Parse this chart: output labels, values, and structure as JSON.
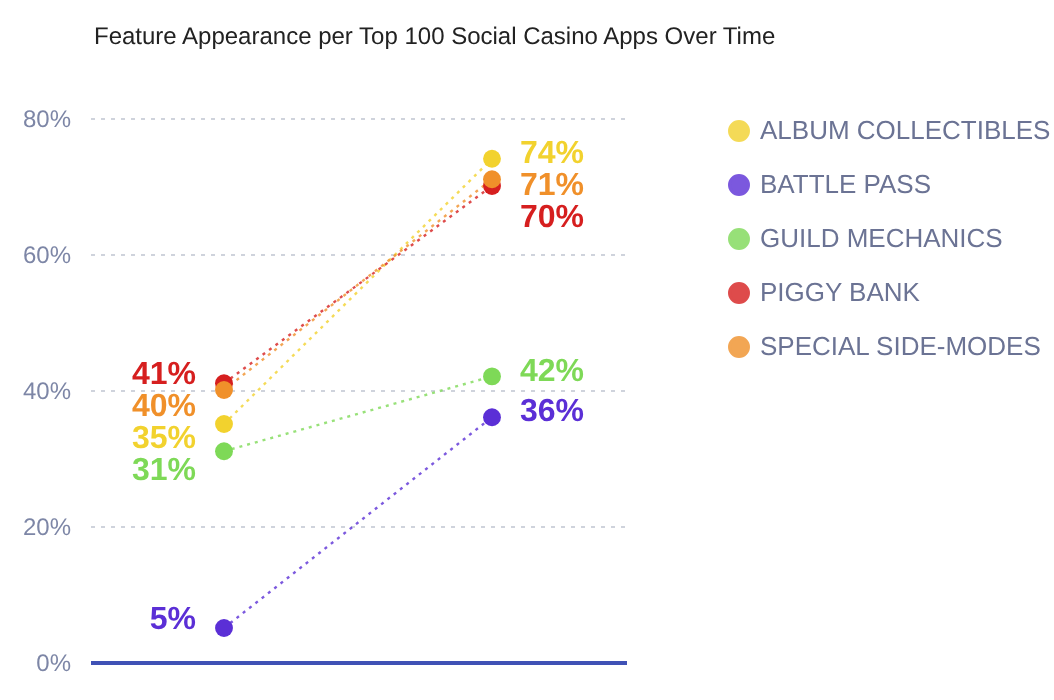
{
  "chart_data": {
    "type": "line",
    "title": "Feature Appearance per Top 100 Social Casino Apps Over Time",
    "categories": [
      null,
      null
    ],
    "series": [
      {
        "name": "ALBUM COLLECTIBLES",
        "color": "#f2d22e",
        "values": [
          35,
          74
        ],
        "value_labels": [
          "35%",
          "74%"
        ]
      },
      {
        "name": "BATTLE PASS",
        "color": "#5b2fd6",
        "values": [
          5,
          36
        ],
        "value_labels": [
          "5%",
          "36%"
        ]
      },
      {
        "name": "GUILD MECHANICS",
        "color": "#7ed957",
        "values": [
          31,
          42
        ],
        "value_labels": [
          "31%",
          "42%"
        ]
      },
      {
        "name": "PIGGY BANK",
        "color": "#d61f1f",
        "values": [
          41,
          70
        ],
        "value_labels": [
          "41%",
          "70%"
        ]
      },
      {
        "name": "SPECIAL SIDE-MODES",
        "color": "#f0902a",
        "values": [
          40,
          71
        ],
        "value_labels": [
          "40%",
          "71%"
        ]
      }
    ],
    "ylim": [
      0,
      80
    ],
    "yticks": [
      {
        "value": 0,
        "label": "0%"
      },
      {
        "value": 20,
        "label": "20%"
      },
      {
        "value": 40,
        "label": "40%"
      },
      {
        "value": 60,
        "label": "60%"
      },
      {
        "value": 80,
        "label": "80%"
      }
    ],
    "grid": "y",
    "legend": "top right",
    "marker": "circle",
    "line_style": "dotted",
    "tick_labels": "y"
  }
}
